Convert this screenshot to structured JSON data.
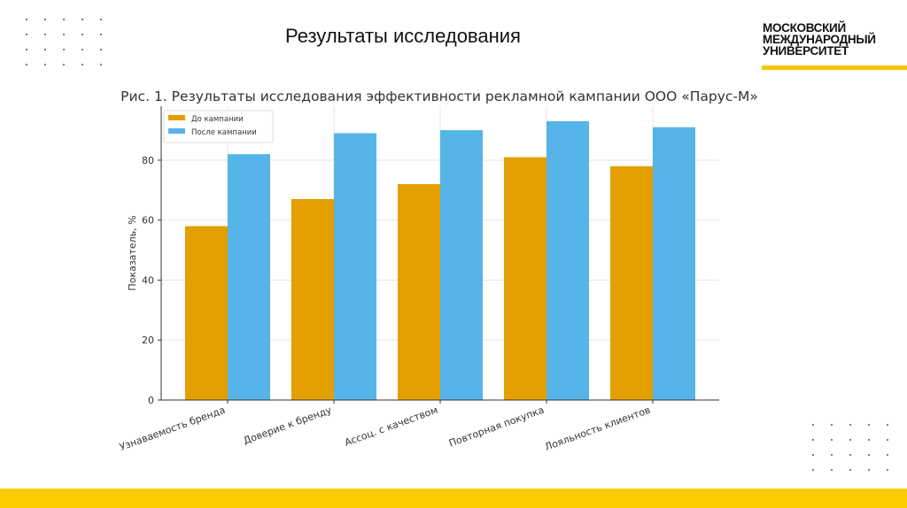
{
  "slide": {
    "title": "Результаты исследования",
    "logo_text": [
      "МОСКОВСКИЙ",
      "МЕЖДУНАРОДНЫЙ",
      "УНИВЕРСИТЕТ"
    ],
    "accent_color": "#fccc00"
  },
  "chart_data": {
    "type": "bar",
    "title": "Рис. 1. Результаты исследования эффективности рекламной кампании ООО «Парус-М»",
    "xlabel": "",
    "ylabel": "Показатель, %",
    "categories": [
      "Узнаваемость бренда",
      "Доверие к бренду",
      "Ассоц. с качеством",
      "Повторная покупка",
      "Лояльность клиентов"
    ],
    "series": [
      {
        "name": "До кампании",
        "color": "#e49f00",
        "values": [
          58,
          67,
          72,
          81,
          78
        ]
      },
      {
        "name": "После кампании",
        "color": "#56b4e9",
        "values": [
          82,
          89,
          90,
          93,
          91
        ]
      }
    ],
    "ylim": [
      0,
      98
    ],
    "yticks": [
      0,
      20,
      40,
      60,
      80
    ],
    "grid": true,
    "legend": "top-left"
  }
}
